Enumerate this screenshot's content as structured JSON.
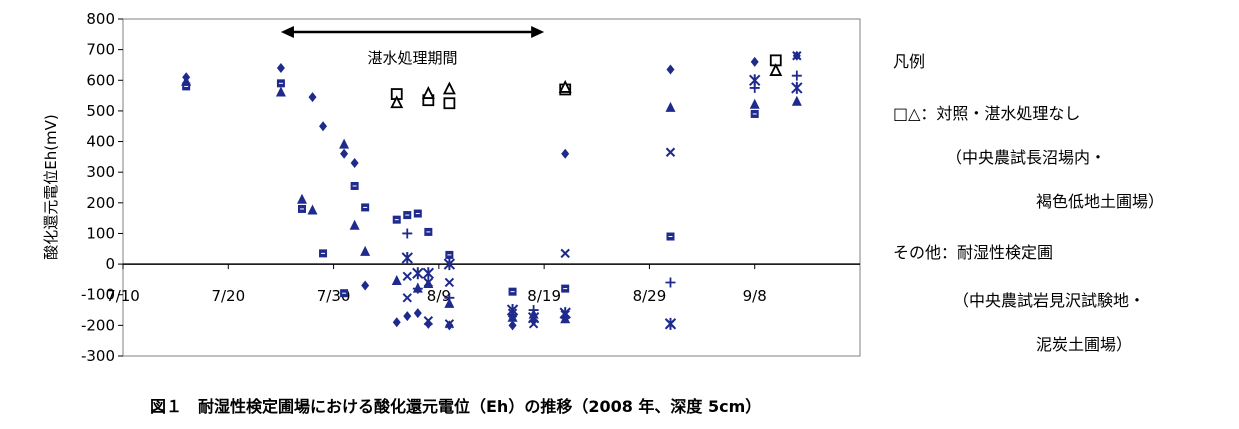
{
  "chart_data": {
    "type": "scatter",
    "ylabel": "酸化還元電位Eh(mV)",
    "ylim": [
      -300,
      800
    ],
    "yticks": [
      800,
      700,
      600,
      500,
      400,
      300,
      200,
      100,
      0,
      -100,
      -200,
      -300
    ],
    "xlim": [
      "2008-07-10",
      "2008-09-18"
    ],
    "xticks": [
      {
        "date": "2008-07-10",
        "label": "7/10"
      },
      {
        "date": "2008-07-20",
        "label": "7/20"
      },
      {
        "date": "2008-07-30",
        "label": "7/30"
      },
      {
        "date": "2008-08-09",
        "label": "8/9"
      },
      {
        "date": "2008-08-19",
        "label": "8/19"
      },
      {
        "date": "2008-08-29",
        "label": "8/29"
      },
      {
        "date": "2008-09-08",
        "label": "9/8"
      }
    ],
    "annotation": {
      "label": "湛水処理期間",
      "start": "2008-07-25",
      "end": "2008-08-19"
    },
    "colors": {
      "treated": "#1e2a8c",
      "control": "#000000"
    },
    "series": [
      {
        "marker": "diamond",
        "color": "#1e2a8c",
        "points": [
          {
            "x": "2008-07-16",
            "y": 610
          },
          {
            "x": "2008-07-25",
            "y": 640
          },
          {
            "x": "2008-07-28",
            "y": 545
          },
          {
            "x": "2008-07-29",
            "y": 450
          },
          {
            "x": "2008-07-31",
            "y": 360
          },
          {
            "x": "2008-08-01",
            "y": 330
          },
          {
            "x": "2008-08-02",
            "y": -70
          },
          {
            "x": "2008-08-05",
            "y": -190
          },
          {
            "x": "2008-08-06",
            "y": -170
          },
          {
            "x": "2008-08-07",
            "y": -160
          },
          {
            "x": "2008-08-08",
            "y": -195
          },
          {
            "x": "2008-08-10",
            "y": -200
          },
          {
            "x": "2008-08-16",
            "y": -200
          },
          {
            "x": "2008-08-18",
            "y": -185
          },
          {
            "x": "2008-08-21",
            "y": 360
          },
          {
            "x": "2008-08-31",
            "y": 635
          },
          {
            "x": "2008-09-08",
            "y": 660
          },
          {
            "x": "2008-09-12",
            "y": 680
          }
        ]
      },
      {
        "marker": "square",
        "color": "#1e2a8c",
        "points": [
          {
            "x": "2008-07-16",
            "y": 580
          },
          {
            "x": "2008-07-25",
            "y": 590
          },
          {
            "x": "2008-07-27",
            "y": 180
          },
          {
            "x": "2008-07-29",
            "y": 35
          },
          {
            "x": "2008-07-31",
            "y": -95
          },
          {
            "x": "2008-08-01",
            "y": 255
          },
          {
            "x": "2008-08-02",
            "y": 185
          },
          {
            "x": "2008-08-05",
            "y": 145
          },
          {
            "x": "2008-08-06",
            "y": 160
          },
          {
            "x": "2008-08-07",
            "y": 165
          },
          {
            "x": "2008-08-08",
            "y": 105
          },
          {
            "x": "2008-08-10",
            "y": 30
          },
          {
            "x": "2008-08-16",
            "y": -90
          },
          {
            "x": "2008-08-21",
            "y": -80
          },
          {
            "x": "2008-08-31",
            "y": 90
          },
          {
            "x": "2008-09-08",
            "y": 490
          }
        ]
      },
      {
        "marker": "triangle",
        "color": "#1e2a8c",
        "points": [
          {
            "x": "2008-07-16",
            "y": 595
          },
          {
            "x": "2008-07-25",
            "y": 560
          },
          {
            "x": "2008-07-27",
            "y": 210
          },
          {
            "x": "2008-07-28",
            "y": 175
          },
          {
            "x": "2008-07-31",
            "y": 390
          },
          {
            "x": "2008-08-01",
            "y": 125
          },
          {
            "x": "2008-08-02",
            "y": 40
          },
          {
            "x": "2008-08-05",
            "y": -55
          },
          {
            "x": "2008-08-07",
            "y": -80
          },
          {
            "x": "2008-08-08",
            "y": -65
          },
          {
            "x": "2008-08-10",
            "y": -130
          },
          {
            "x": "2008-08-16",
            "y": -175
          },
          {
            "x": "2008-08-18",
            "y": -165
          },
          {
            "x": "2008-08-21",
            "y": -180
          },
          {
            "x": "2008-08-31",
            "y": 510
          },
          {
            "x": "2008-09-08",
            "y": 520
          },
          {
            "x": "2008-09-12",
            "y": 530
          }
        ]
      },
      {
        "marker": "x",
        "color": "#1e2a8c",
        "points": [
          {
            "x": "2008-08-06",
            "y": -40
          },
          {
            "x": "2008-08-06",
            "y": -110
          },
          {
            "x": "2008-08-08",
            "y": -60
          },
          {
            "x": "2008-08-08",
            "y": -185
          },
          {
            "x": "2008-08-10",
            "y": -60
          },
          {
            "x": "2008-08-10",
            "y": -195
          },
          {
            "x": "2008-08-16",
            "y": -160
          },
          {
            "x": "2008-08-18",
            "y": -195
          },
          {
            "x": "2008-08-21",
            "y": 35
          },
          {
            "x": "2008-08-21",
            "y": -165
          },
          {
            "x": "2008-08-31",
            "y": 365
          },
          {
            "x": "2008-08-31",
            "y": -195
          },
          {
            "x": "2008-09-12",
            "y": 680
          }
        ]
      },
      {
        "marker": "asterisk",
        "color": "#1e2a8c",
        "points": [
          {
            "x": "2008-08-06",
            "y": 20
          },
          {
            "x": "2008-08-07",
            "y": -30
          },
          {
            "x": "2008-08-08",
            "y": -30
          },
          {
            "x": "2008-08-10",
            "y": 0
          },
          {
            "x": "2008-08-16",
            "y": -150
          },
          {
            "x": "2008-08-18",
            "y": -175
          },
          {
            "x": "2008-08-21",
            "y": -160
          },
          {
            "x": "2008-08-31",
            "y": -195
          },
          {
            "x": "2008-09-08",
            "y": 600
          },
          {
            "x": "2008-09-12",
            "y": 575
          }
        ]
      },
      {
        "marker": "plus",
        "color": "#1e2a8c",
        "points": [
          {
            "x": "2008-08-06",
            "y": 100
          },
          {
            "x": "2008-08-07",
            "y": -80
          },
          {
            "x": "2008-08-10",
            "y": -110
          },
          {
            "x": "2008-08-16",
            "y": -165
          },
          {
            "x": "2008-08-18",
            "y": -150
          },
          {
            "x": "2008-08-31",
            "y": -60
          },
          {
            "x": "2008-09-08",
            "y": 575
          },
          {
            "x": "2008-09-12",
            "y": 615
          }
        ]
      },
      {
        "marker": "open-square",
        "color": "#000000",
        "points": [
          {
            "x": "2008-08-05",
            "y": 555
          },
          {
            "x": "2008-08-08",
            "y": 535
          },
          {
            "x": "2008-08-10",
            "y": 525
          },
          {
            "x": "2008-08-21",
            "y": 570
          },
          {
            "x": "2008-09-10",
            "y": 665
          }
        ]
      },
      {
        "marker": "open-triangle",
        "color": "#000000",
        "points": [
          {
            "x": "2008-08-05",
            "y": 525
          },
          {
            "x": "2008-08-08",
            "y": 555
          },
          {
            "x": "2008-08-10",
            "y": 570
          },
          {
            "x": "2008-08-21",
            "y": 575
          },
          {
            "x": "2008-09-10",
            "y": 630
          }
        ]
      }
    ]
  },
  "legend": {
    "title": "凡例",
    "line1": "□△：対照・湛水処理なし",
    "line2": "（中央農試長沼場内・",
    "line3": "褐色低地土圃場）",
    "line4": "その他：耐湿性検定圃",
    "line5": "（中央農試岩見沢試験地・",
    "line6": "泥炭土圃場）"
  },
  "caption": "図１　耐湿性検定圃場における酸化還元電位（Eh）の推移（2008 年、深度 5cm）"
}
